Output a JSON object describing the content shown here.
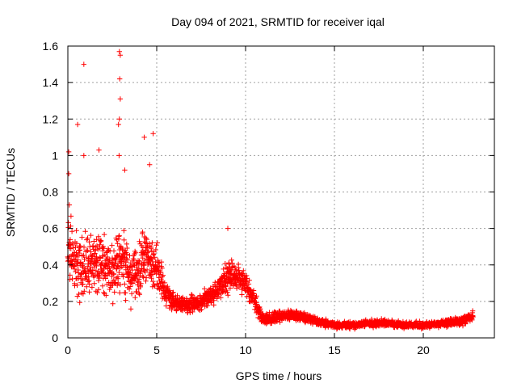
{
  "chart_data": {
    "type": "scatter",
    "title": "Day 094 of 2021, SRMTID for receiver iqal",
    "xlabel": "GPS time / hours",
    "ylabel": "SRMTID / TECUs",
    "xlim": [
      0,
      24
    ],
    "ylim": [
      0,
      1.6
    ],
    "xticks": [
      0,
      5,
      10,
      15,
      20
    ],
    "yticks": [
      0,
      0.2,
      0.4,
      0.6,
      0.8,
      1,
      1.2,
      1.4,
      1.6
    ],
    "xtick_labels": [
      "0",
      "5",
      "10",
      "15",
      "20"
    ],
    "ytick_labels": [
      "0",
      "0.2",
      "0.4",
      "0.6",
      "0.8",
      "1",
      "1.2",
      "1.4",
      "1.6"
    ],
    "grid": true,
    "marker": "+",
    "color": "#ff0000",
    "x_extent": [
      0,
      22.8
    ],
    "envelope": {
      "x": [
        0.0,
        0.5,
        1.0,
        1.5,
        2.0,
        2.5,
        3.0,
        3.5,
        4.0,
        4.5,
        5.0,
        5.5,
        6.0,
        6.5,
        7.0,
        7.5,
        8.0,
        8.5,
        9.0,
        9.5,
        10.0,
        10.5,
        11.0,
        11.5,
        12.0,
        12.5,
        13.0,
        14.0,
        15.0,
        16.0,
        17.0,
        18.0,
        19.0,
        20.0,
        21.0,
        22.0,
        22.8
      ],
      "mean": [
        0.5,
        0.4,
        0.38,
        0.42,
        0.4,
        0.35,
        0.45,
        0.33,
        0.38,
        0.45,
        0.38,
        0.25,
        0.2,
        0.18,
        0.18,
        0.2,
        0.22,
        0.26,
        0.35,
        0.33,
        0.3,
        0.2,
        0.1,
        0.11,
        0.12,
        0.12,
        0.12,
        0.09,
        0.07,
        0.07,
        0.08,
        0.08,
        0.07,
        0.07,
        0.08,
        0.09,
        0.12
      ],
      "spread": [
        0.4,
        0.3,
        0.28,
        0.3,
        0.25,
        0.25,
        0.3,
        0.22,
        0.25,
        0.25,
        0.25,
        0.12,
        0.08,
        0.07,
        0.08,
        0.08,
        0.1,
        0.1,
        0.15,
        0.12,
        0.1,
        0.08,
        0.05,
        0.05,
        0.05,
        0.05,
        0.05,
        0.04,
        0.03,
        0.03,
        0.03,
        0.03,
        0.03,
        0.03,
        0.03,
        0.04,
        0.05
      ]
    },
    "points_per_hour": 110,
    "outliers": [
      {
        "x": 0.9,
        "y": 1.5
      },
      {
        "x": 2.9,
        "y": 1.57
      },
      {
        "x": 2.95,
        "y": 1.55
      },
      {
        "x": 2.92,
        "y": 1.42
      },
      {
        "x": 2.95,
        "y": 1.31
      },
      {
        "x": 2.9,
        "y": 1.2
      },
      {
        "x": 2.85,
        "y": 1.17
      },
      {
        "x": 0.55,
        "y": 1.17
      },
      {
        "x": 4.8,
        "y": 1.12
      },
      {
        "x": 4.3,
        "y": 1.1
      },
      {
        "x": 2.88,
        "y": 1.0
      },
      {
        "x": 0.05,
        "y": 1.02
      },
      {
        "x": 0.9,
        "y": 1.0
      },
      {
        "x": 1.75,
        "y": 1.03
      },
      {
        "x": 9.0,
        "y": 0.6
      },
      {
        "x": 0.05,
        "y": 0.9
      },
      {
        "x": 4.6,
        "y": 0.95
      },
      {
        "x": 3.2,
        "y": 0.92
      }
    ]
  }
}
